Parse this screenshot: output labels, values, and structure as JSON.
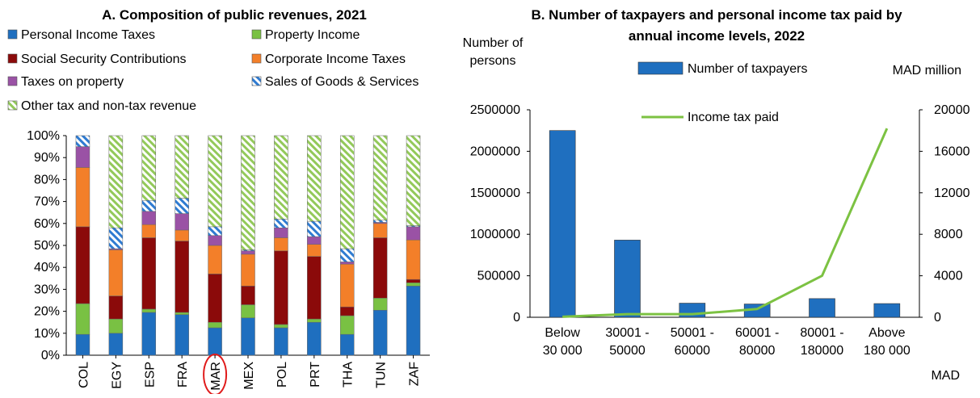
{
  "chart_data": [
    {
      "type": "bar",
      "stacked": true,
      "title": "A. Composition of public revenues, 2021",
      "categories": [
        "COL",
        "EGY",
        "ESP",
        "FRA",
        "MAR",
        "MEX",
        "POL",
        "PRT",
        "THA",
        "TUN",
        "ZAF"
      ],
      "highlighted_category": "MAR",
      "y_ticks": [
        "0%",
        "10%",
        "20%",
        "30%",
        "40%",
        "50%",
        "60%",
        "70%",
        "80%",
        "90%",
        "100%"
      ],
      "ylim": [
        0,
        100
      ],
      "legend_placement": "top",
      "series": [
        {
          "name": "Personal Income Taxes",
          "color": "#1f6fbf",
          "pattern": "solid",
          "values": [
            9.5,
            10,
            19.5,
            18.5,
            12.5,
            17,
            12.5,
            15,
            9.5,
            20.5,
            31.5
          ]
        },
        {
          "name": "Property Income",
          "color": "#79c143",
          "pattern": "solid",
          "values": [
            14,
            6.5,
            1.5,
            1,
            2.5,
            6,
            1.5,
            1.5,
            8.5,
            5.5,
            1.5
          ]
        },
        {
          "name": "Social Security Contributions",
          "color": "#8b0a0a",
          "pattern": "solid",
          "values": [
            35,
            10.5,
            32.5,
            32.5,
            22,
            8.5,
            33.5,
            28.5,
            4,
            27.5,
            1.5
          ]
        },
        {
          "name": "Corporate Income Taxes",
          "color": "#f37f29",
          "pattern": "solid",
          "values": [
            27,
            21,
            6,
            5,
            13,
            14.5,
            6,
            5.5,
            19.5,
            6.5,
            18
          ]
        },
        {
          "name": "Taxes on property",
          "color": "#9a52a5",
          "pattern": "solid",
          "values": [
            9.5,
            0.5,
            6,
            7.5,
            4.5,
            1.5,
            4.5,
            3.5,
            1,
            0.5,
            6
          ]
        },
        {
          "name": "Sales of Goods & Services",
          "color": "#2f7bd1",
          "pattern": "hatch",
          "values": [
            5,
            9.5,
            5,
            7,
            4,
            0.5,
            4,
            7,
            6,
            1,
            0.5
          ]
        },
        {
          "name": "Other tax and non-tax revenue",
          "color": "#93c95a",
          "pattern": "hatch",
          "values": [
            0,
            42,
            29.5,
            28.5,
            41.5,
            52,
            38,
            39,
            51.5,
            38.5,
            41
          ]
        }
      ]
    },
    {
      "type": "bar+line",
      "title": "B. Number of taxpayers and personal income tax paid by annual income levels, 2022",
      "categories": [
        [
          "Below",
          "30 000"
        ],
        [
          "30001 -",
          "50000"
        ],
        [
          "50001 -",
          "60000"
        ],
        [
          "60001 -",
          "80000"
        ],
        [
          "80001 -",
          "180000"
        ],
        [
          "Above",
          "180 000"
        ]
      ],
      "xlabel": "MAD",
      "y_left_label": [
        "Number of",
        "persons"
      ],
      "y_right_label": "MAD million",
      "y_left_ticks": [
        "0",
        "500000",
        "1000000",
        "1500000",
        "2000000",
        "2500000"
      ],
      "y_right_ticks": [
        "0",
        "4000",
        "8000",
        "12000",
        "16000",
        "20000"
      ],
      "ylim_left": [
        0,
        2500000
      ],
      "ylim_right": [
        0,
        20000
      ],
      "legend_placement": "top",
      "series": [
        {
          "name": "Number of taxpayers",
          "type": "bar",
          "axis": "left",
          "color": "#1f6fbf",
          "values": [
            2250000,
            930000,
            170000,
            160000,
            225000,
            165000
          ]
        },
        {
          "name": "Income tax paid",
          "type": "line",
          "axis": "right",
          "color": "#7cc242",
          "values": [
            50,
            300,
            300,
            800,
            4000,
            18200
          ]
        }
      ]
    }
  ]
}
